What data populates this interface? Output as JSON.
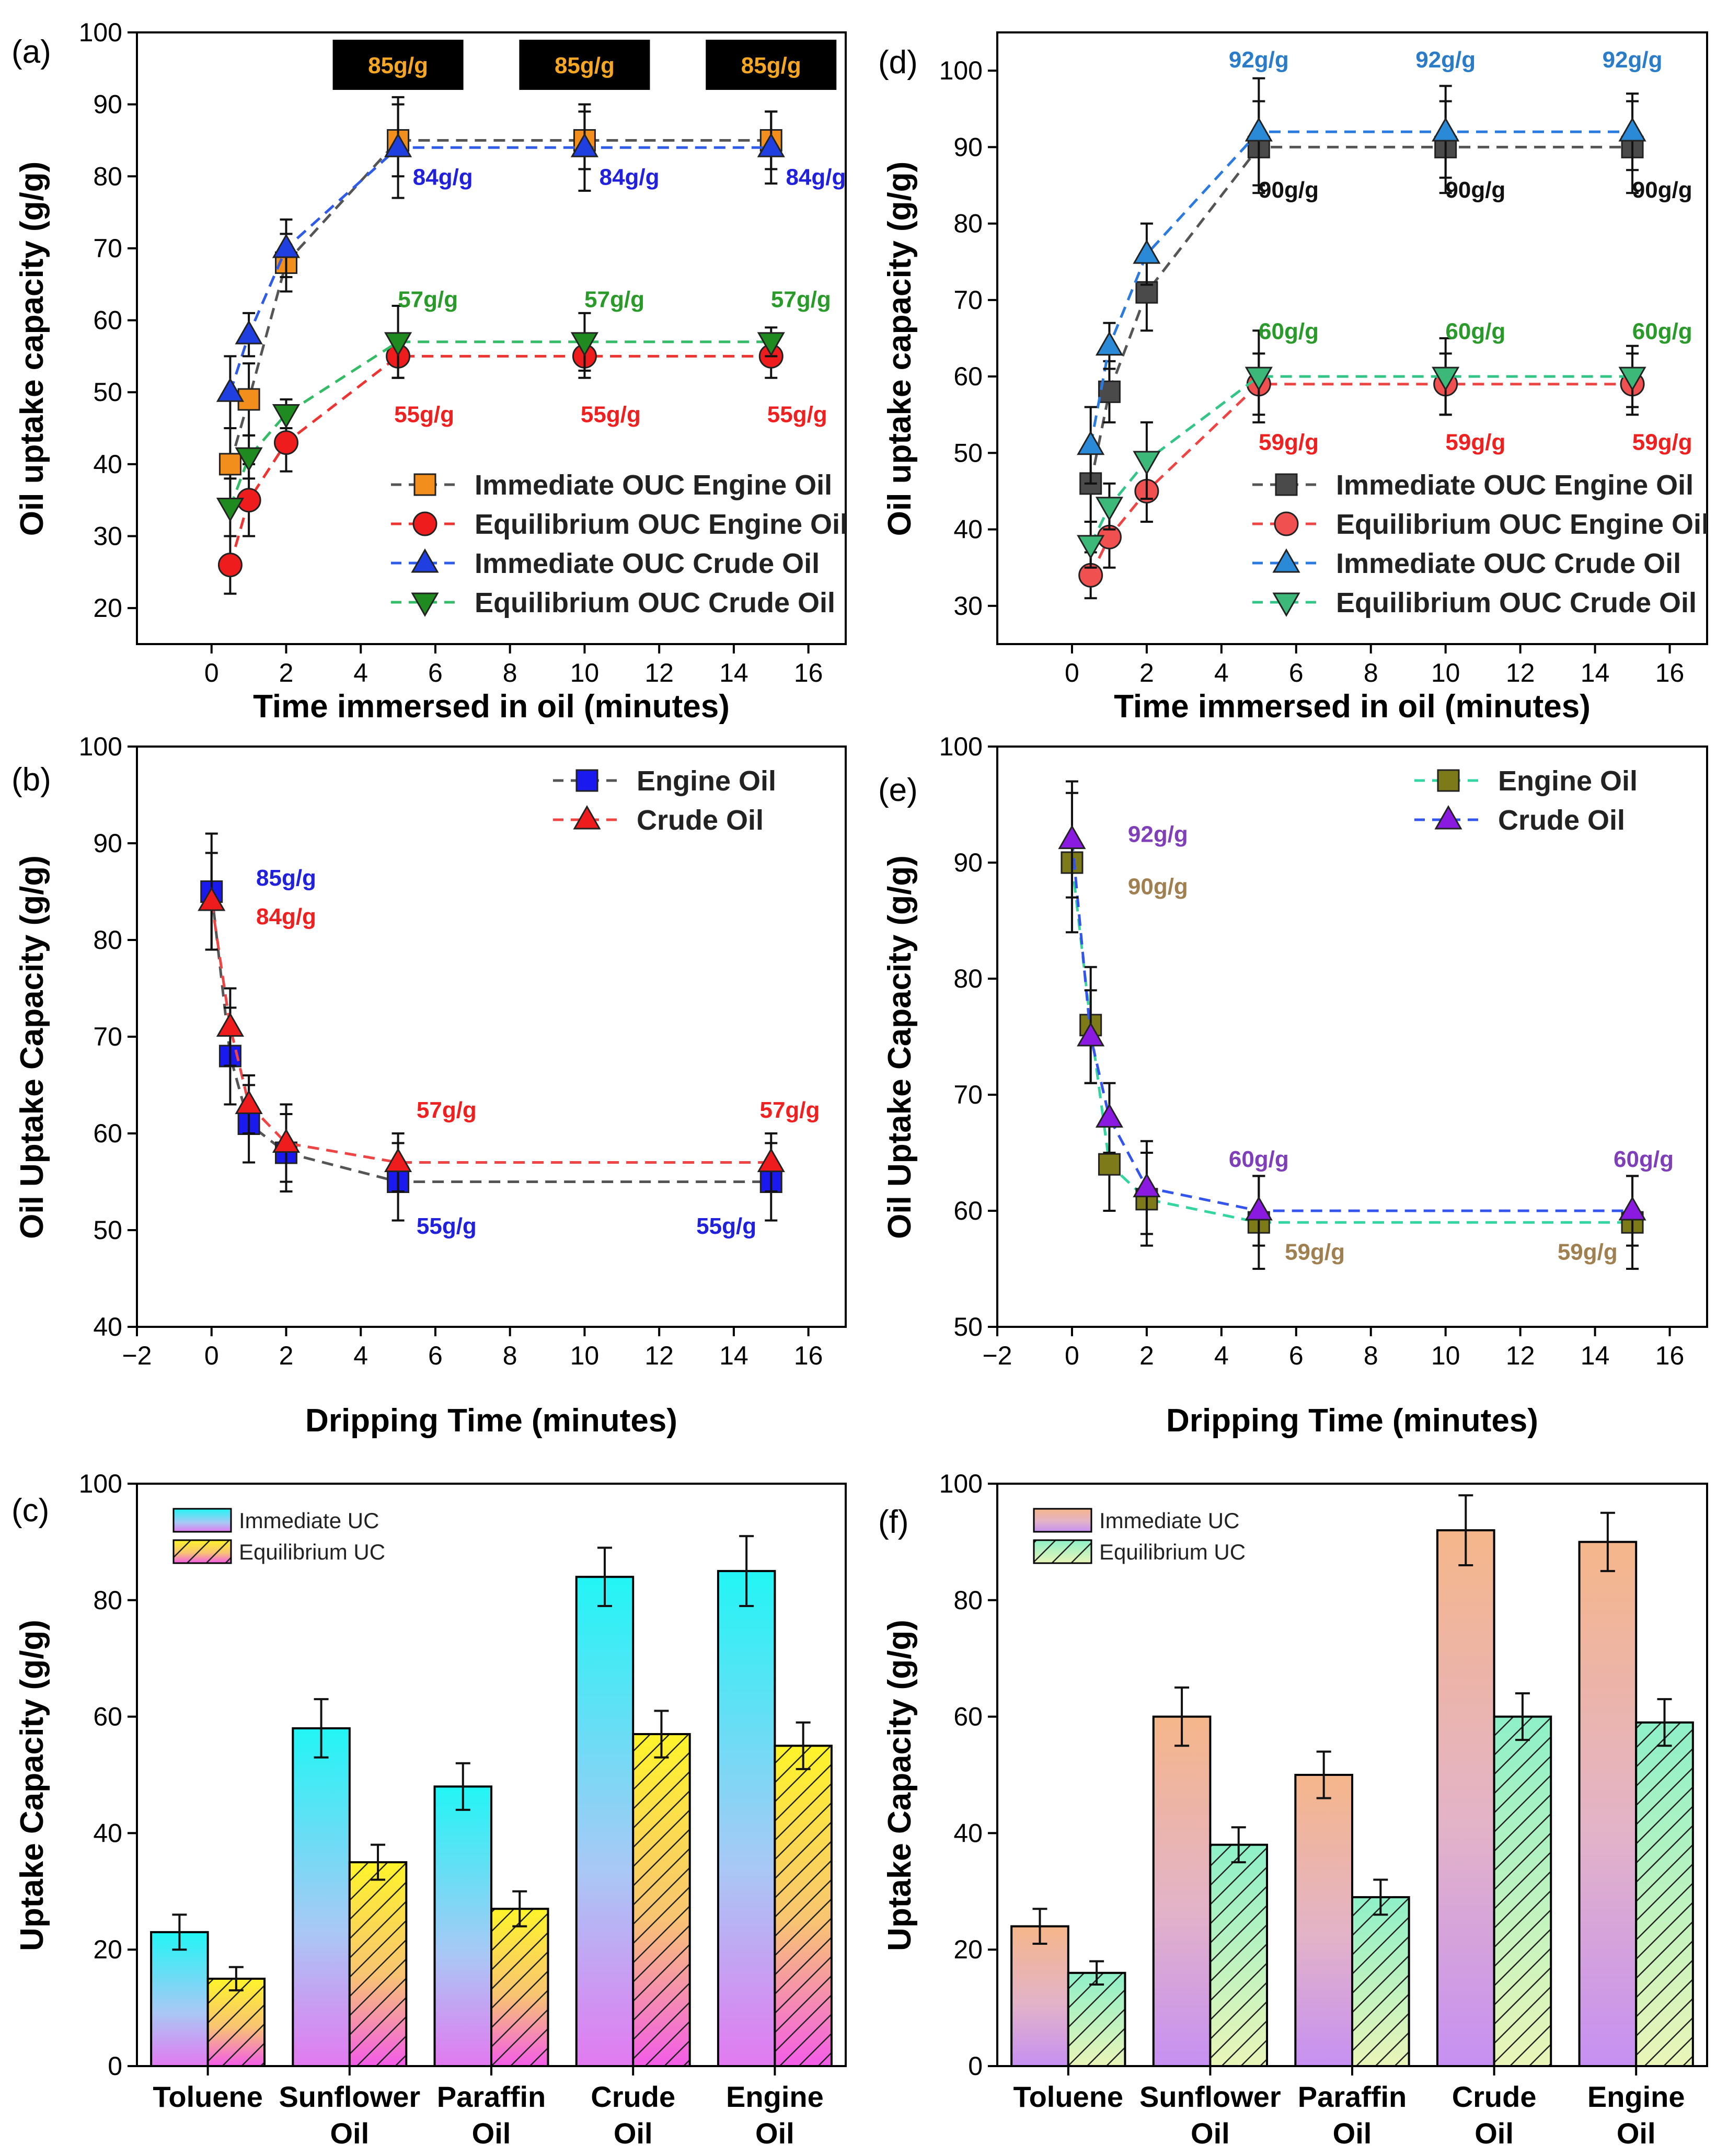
{
  "chart_data": [
    {
      "id": "a",
      "type": "line",
      "panel_label": "(a)",
      "xlabel": "Time immersed in oil (minutes)",
      "ylabel": "Oil uptake capacity (g/g)",
      "xlim": [
        -2,
        17
      ],
      "ylim": [
        15,
        100
      ],
      "xticks": [
        0,
        2,
        4,
        6,
        8,
        10,
        12,
        14,
        16
      ],
      "yticks": [
        20,
        30,
        40,
        50,
        60,
        70,
        80,
        90,
        100
      ],
      "legend_position": "bottom-right",
      "series": [
        {
          "name": "Immediate OUC Engine Oil",
          "marker": "square",
          "color": "#f28e1c",
          "line_color": "#555555",
          "x": [
            0.5,
            1,
            2,
            5,
            10,
            15
          ],
          "y": [
            40,
            49,
            68,
            85,
            85,
            85
          ],
          "err": [
            5,
            5,
            4,
            5,
            4,
            4
          ]
        },
        {
          "name": "Equilibrium OUC Engine Oil",
          "marker": "circle",
          "color": "#ee1c1c",
          "line_color": "#ee3333",
          "x": [
            0.5,
            1,
            2,
            5,
            10,
            15
          ],
          "y": [
            26,
            35,
            43,
            55,
            55,
            55
          ],
          "err": [
            4,
            5,
            4,
            3,
            3,
            3
          ]
        },
        {
          "name": "Immediate OUC Crude Oil",
          "marker": "triangle-up",
          "color": "#1f3fe0",
          "line_color": "#2e5be8",
          "x": [
            0.5,
            1,
            2,
            5,
            10,
            15
          ],
          "y": [
            50,
            58,
            70,
            84,
            84,
            84
          ],
          "err": [
            5,
            3,
            4,
            7,
            6,
            5
          ]
        },
        {
          "name": "Equilibrium OUC Crude Oil",
          "marker": "triangle-down",
          "color": "#1f8a1f",
          "line_color": "#33bb66",
          "x": [
            0.5,
            1,
            2,
            5,
            10,
            15
          ],
          "y": [
            34,
            41,
            47,
            57,
            57,
            57
          ],
          "err": [
            4,
            3,
            2,
            5,
            4,
            2
          ]
        }
      ],
      "annotations": [
        {
          "text": "85g/g",
          "x": 5,
          "y": 95.5,
          "color": "#f5a623",
          "boxed": true
        },
        {
          "text": "85g/g",
          "x": 10,
          "y": 95.5,
          "color": "#f5a623",
          "boxed": true
        },
        {
          "text": "85g/g",
          "x": 15,
          "y": 95.5,
          "color": "#f5a623",
          "boxed": true
        },
        {
          "text": "84g/g",
          "x": 6.2,
          "y": 80,
          "color": "#2020dd"
        },
        {
          "text": "84g/g",
          "x": 11.2,
          "y": 80,
          "color": "#2020dd"
        },
        {
          "text": "84g/g",
          "x": 16.2,
          "y": 80,
          "color": "#2020dd"
        },
        {
          "text": "57g/g",
          "x": 5.8,
          "y": 63,
          "color": "#2a9a2a"
        },
        {
          "text": "57g/g",
          "x": 10.8,
          "y": 63,
          "color": "#2a9a2a"
        },
        {
          "text": "57g/g",
          "x": 15.8,
          "y": 63,
          "color": "#2a9a2a"
        },
        {
          "text": "55g/g",
          "x": 5.7,
          "y": 47,
          "color": "#ee2020"
        },
        {
          "text": "55g/g",
          "x": 10.7,
          "y": 47,
          "color": "#ee2020"
        },
        {
          "text": "55g/g",
          "x": 15.7,
          "y": 47,
          "color": "#ee2020"
        }
      ]
    },
    {
      "id": "d",
      "type": "line",
      "panel_label": "(d)",
      "xlabel": "Time immersed in oil (minutes)",
      "ylabel": "Oil uptake capacity (g/g)",
      "xlim": [
        -2,
        17
      ],
      "ylim": [
        25,
        105
      ],
      "xticks": [
        0,
        2,
        4,
        6,
        8,
        10,
        12,
        14,
        16
      ],
      "yticks": [
        30,
        40,
        50,
        60,
        70,
        80,
        90,
        100
      ],
      "legend_position": "bottom-right",
      "series": [
        {
          "name": "Immediate OUC Engine Oil",
          "marker": "square",
          "color": "#4a4a4a",
          "line_color": "#555555",
          "x": [
            0.5,
            1,
            2,
            5,
            10,
            15
          ],
          "y": [
            46,
            58,
            71,
            90,
            90,
            90
          ],
          "err": [
            5,
            4,
            5,
            6,
            6,
            6
          ]
        },
        {
          "name": "Equilibrium OUC Engine Oil",
          "marker": "circle",
          "color": "#f05050",
          "line_color": "#ee4444",
          "x": [
            0.5,
            1,
            2,
            5,
            10,
            15
          ],
          "y": [
            34,
            39,
            45,
            59,
            59,
            59
          ],
          "err": [
            3,
            4,
            4,
            4,
            4,
            4
          ]
        },
        {
          "name": "Immediate OUC Crude Oil",
          "marker": "triangle-up",
          "color": "#2a8ad8",
          "line_color": "#2a7ae0",
          "x": [
            0.5,
            1,
            2,
            5,
            10,
            15
          ],
          "y": [
            51,
            64,
            76,
            92,
            92,
            92
          ],
          "err": [
            5,
            3,
            4,
            7,
            6,
            5
          ]
        },
        {
          "name": "Equilibrium OUC Crude Oil",
          "marker": "triangle-down",
          "color": "#3cb878",
          "line_color": "#33c488",
          "x": [
            0.5,
            1,
            2,
            5,
            10,
            15
          ],
          "y": [
            38,
            43,
            49,
            60,
            60,
            60
          ],
          "err": [
            3,
            3,
            5,
            6,
            5,
            4
          ]
        }
      ],
      "annotations": [
        {
          "text": "92g/g",
          "x": 5,
          "y": 101.5,
          "color": "#2a7cc8"
        },
        {
          "text": "92g/g",
          "x": 10,
          "y": 101.5,
          "color": "#2a7cc8"
        },
        {
          "text": "92g/g",
          "x": 15,
          "y": 101.5,
          "color": "#2a7cc8"
        },
        {
          "text": "90g/g",
          "x": 5.8,
          "y": 84.5,
          "color": "#111111"
        },
        {
          "text": "90g/g",
          "x": 10.8,
          "y": 84.5,
          "color": "#111111"
        },
        {
          "text": "90g/g",
          "x": 15.8,
          "y": 84.5,
          "color": "#111111"
        },
        {
          "text": "60g/g",
          "x": 5.8,
          "y": 66,
          "color": "#2a9a2a"
        },
        {
          "text": "60g/g",
          "x": 10.8,
          "y": 66,
          "color": "#2a9a2a"
        },
        {
          "text": "60g/g",
          "x": 15.8,
          "y": 66,
          "color": "#2a9a2a"
        },
        {
          "text": "59g/g",
          "x": 5.8,
          "y": 51.5,
          "color": "#ee2020"
        },
        {
          "text": "59g/g",
          "x": 10.8,
          "y": 51.5,
          "color": "#ee2020"
        },
        {
          "text": "59g/g",
          "x": 15.8,
          "y": 51.5,
          "color": "#ee2020"
        }
      ]
    },
    {
      "id": "b",
      "type": "line",
      "panel_label": "(b)",
      "xlabel": "Dripping Time (minutes)",
      "ylabel": "Oil Uptake Capacity (g/g)",
      "xlim": [
        -2,
        17
      ],
      "ylim": [
        40,
        100
      ],
      "xticks": [
        -2,
        0,
        2,
        4,
        6,
        8,
        10,
        12,
        14,
        16
      ],
      "yticks": [
        40,
        50,
        60,
        70,
        80,
        90,
        100
      ],
      "legend_position": "top-right",
      "series": [
        {
          "name": "Engine Oil",
          "marker": "square",
          "color": "#1a1aee",
          "line_color": "#555555",
          "x": [
            0,
            0.5,
            1,
            2,
            5,
            15
          ],
          "y": [
            85,
            68,
            61,
            58,
            55,
            55
          ],
          "err": [
            6,
            5,
            4,
            4,
            4,
            4
          ]
        },
        {
          "name": "Crude Oil",
          "marker": "triangle-up",
          "color": "#ee1c1c",
          "line_color": "#ee4444",
          "x": [
            0,
            0.5,
            1,
            2,
            5,
            15
          ],
          "y": [
            84,
            71,
            63,
            59,
            57,
            57
          ],
          "err": [
            5,
            4,
            3,
            4,
            3,
            3
          ]
        }
      ],
      "annotations": [
        {
          "text": "85g/g",
          "x": 2,
          "y": 86.5,
          "color": "#2020dd"
        },
        {
          "text": "84g/g",
          "x": 2,
          "y": 82.5,
          "color": "#ee2020"
        },
        {
          "text": "57g/g",
          "x": 6.3,
          "y": 62.5,
          "color": "#ee2020"
        },
        {
          "text": "57g/g",
          "x": 15.5,
          "y": 62.5,
          "color": "#ee2020"
        },
        {
          "text": "55g/g",
          "x": 6.3,
          "y": 50.5,
          "color": "#2020dd"
        },
        {
          "text": "55g/g",
          "x": 13.8,
          "y": 50.5,
          "color": "#2020dd"
        }
      ]
    },
    {
      "id": "e",
      "type": "line",
      "panel_label": "(e)",
      "xlabel": "Dripping Time (minutes)",
      "ylabel": "Oil Uptake Capacity (g/g)",
      "xlim": [
        -2,
        17
      ],
      "ylim": [
        50,
        100
      ],
      "xticks": [
        -2,
        0,
        2,
        4,
        6,
        8,
        10,
        12,
        14,
        16
      ],
      "yticks": [
        50,
        60,
        70,
        80,
        90,
        100
      ],
      "legend_position": "top-right",
      "series": [
        {
          "name": "Engine Oil",
          "marker": "square",
          "color": "#7d7a1a",
          "line_color": "#33d6a0",
          "x": [
            0,
            0.5,
            1,
            2,
            5,
            15
          ],
          "y": [
            90,
            76,
            64,
            61,
            59,
            59
          ],
          "err": [
            6,
            5,
            4,
            4,
            4,
            4
          ]
        },
        {
          "name": "Crude Oil",
          "marker": "triangle-up",
          "color": "#8a1ae0",
          "line_color": "#3355ee",
          "x": [
            0,
            0.5,
            1,
            2,
            5,
            15
          ],
          "y": [
            92,
            75,
            68,
            62,
            60,
            60
          ],
          "err": [
            5,
            4,
            3,
            4,
            3,
            3
          ]
        }
      ],
      "annotations": [
        {
          "text": "92g/g",
          "x": 2.3,
          "y": 92.5,
          "color": "#7e3fb8"
        },
        {
          "text": "90g/g",
          "x": 2.3,
          "y": 88,
          "color": "#a08050"
        },
        {
          "text": "60g/g",
          "x": 5,
          "y": 64.5,
          "color": "#7e3fb8"
        },
        {
          "text": "60g/g",
          "x": 15.3,
          "y": 64.5,
          "color": "#7e3fb8"
        },
        {
          "text": "59g/g",
          "x": 6.5,
          "y": 56.5,
          "color": "#a08050"
        },
        {
          "text": "59g/g",
          "x": 13.8,
          "y": 56.5,
          "color": "#a08050"
        }
      ]
    },
    {
      "id": "c",
      "type": "bar",
      "panel_label": "(c)",
      "xlabel": "",
      "ylabel": "Uptake Capacity (g/g)",
      "ylim": [
        0,
        100
      ],
      "yticks": [
        0,
        20,
        40,
        60,
        80,
        100
      ],
      "categories": [
        "Toluene",
        "Sunflower|Oil",
        "Paraffin|Oil",
        "Crude|Oil",
        "Engine|Oil"
      ],
      "legend_position": "top-left",
      "series": [
        {
          "name": "Immediate UC",
          "values": [
            23,
            58,
            48,
            84,
            85
          ],
          "err": [
            3,
            5,
            4,
            5,
            6
          ],
          "fill": "grad-cyan"
        },
        {
          "name": "Equilibrium UC",
          "values": [
            15,
            35,
            27,
            57,
            55
          ],
          "err": [
            2,
            3,
            3,
            4,
            4
          ],
          "fill": "hatch-yellow"
        }
      ]
    },
    {
      "id": "f",
      "type": "bar",
      "panel_label": "(f)",
      "xlabel": "",
      "ylabel": "Uptake Capacity (g/g)",
      "ylim": [
        0,
        100
      ],
      "yticks": [
        0,
        20,
        40,
        60,
        80,
        100
      ],
      "categories": [
        "Toluene",
        "Sunflower|Oil",
        "Paraffin|Oil",
        "Crude|Oil",
        "Engine|Oil"
      ],
      "legend_position": "top-left",
      "series": [
        {
          "name": "Immediate UC",
          "values": [
            24,
            60,
            50,
            92,
            90
          ],
          "err": [
            3,
            5,
            4,
            6,
            5
          ],
          "fill": "grad-orange"
        },
        {
          "name": "Equilibrium UC",
          "values": [
            16,
            38,
            29,
            60,
            59
          ],
          "err": [
            2,
            3,
            3,
            4,
            4
          ],
          "fill": "hatch-green"
        }
      ]
    }
  ]
}
